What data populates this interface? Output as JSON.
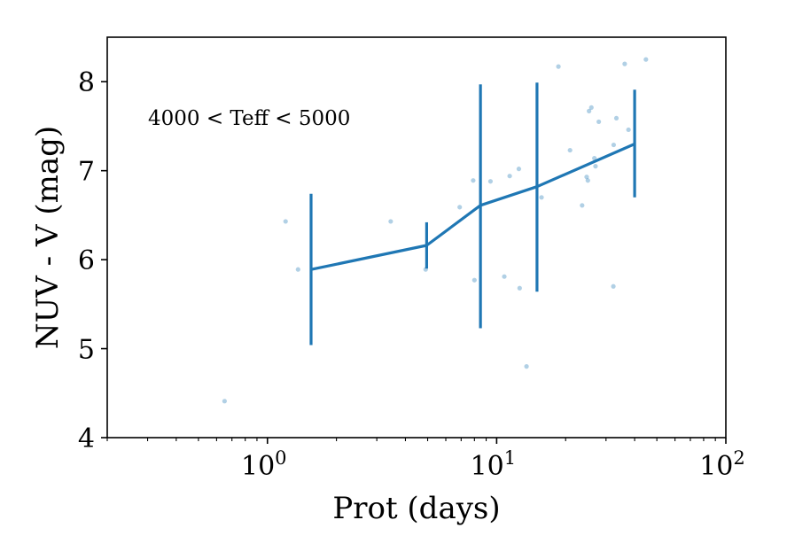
{
  "chart_data": {
    "type": "scatter",
    "xlabel": "Prot (days)",
    "ylabel": "NUV - V (mag)",
    "annotation": "4000 < Teff < 5000",
    "xscale": "log",
    "xlim": [
      0.2,
      100
    ],
    "ylim": [
      4,
      8.5
    ],
    "x_tick_labels": [
      {
        "value": 1,
        "base": "10",
        "exp": "0"
      },
      {
        "value": 10,
        "base": "10",
        "exp": "1"
      },
      {
        "value": 100,
        "base": "10",
        "exp": "2"
      }
    ],
    "y_ticks": [
      4,
      5,
      6,
      7,
      8
    ],
    "y_tick_labels": [
      "4",
      "5",
      "6",
      "7",
      "8"
    ],
    "grid": false,
    "colors": {
      "main": "#1f77b4",
      "points": "#1f77b4"
    },
    "series": [
      {
        "kind": "points",
        "x": [
          0.65,
          1.2,
          1.36,
          3.45,
          4.9,
          6.9,
          7.9,
          8.0,
          9.4,
          10.8,
          11.4,
          12.5,
          12.6,
          13.5,
          15.7,
          18.6,
          20.9,
          23.6,
          24.7,
          25.0,
          25.3,
          25.9,
          26.7,
          27.0,
          27.9,
          32.3,
          32.4,
          33.3,
          36.2,
          37.6,
          44.8
        ],
        "y": [
          4.41,
          6.43,
          5.89,
          6.43,
          5.89,
          6.59,
          6.89,
          5.77,
          6.88,
          5.81,
          6.94,
          7.02,
          5.68,
          4.8,
          6.7,
          8.17,
          7.23,
          6.61,
          6.93,
          6.89,
          7.67,
          7.71,
          7.14,
          7.05,
          7.55,
          5.7,
          7.29,
          7.59,
          8.2,
          7.46,
          8.25
        ]
      },
      {
        "kind": "binned_mean",
        "x": [
          1.55,
          4.95,
          8.5,
          15.0,
          40.0
        ],
        "y": [
          5.89,
          6.16,
          6.61,
          6.82,
          7.3
        ],
        "err_low": [
          5.04,
          5.9,
          5.23,
          5.64,
          6.7
        ],
        "err_high": [
          6.74,
          6.42,
          7.97,
          7.99,
          7.91
        ]
      }
    ]
  }
}
